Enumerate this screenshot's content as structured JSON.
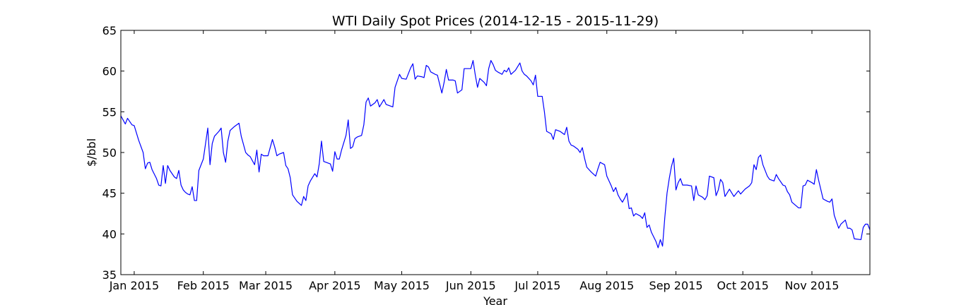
{
  "chart_data": {
    "type": "line",
    "title": "WTI Daily Spot Prices (2014-12-15 - 2015-11-29)",
    "xlabel": "Year",
    "ylabel": "$/bbl",
    "color": "#0000ff",
    "grid": false,
    "xlim": [
      "2014-12-26",
      "2015-11-27"
    ],
    "xticks": [
      {
        "value": "2015-01-01",
        "label": "Jan 2015"
      },
      {
        "value": "2015-02-01",
        "label": "Feb 2015"
      },
      {
        "value": "2015-03-01",
        "label": "Mar 2015"
      },
      {
        "value": "2015-04-01",
        "label": "Apr 2015"
      },
      {
        "value": "2015-05-01",
        "label": "May 2015"
      },
      {
        "value": "2015-06-01",
        "label": "Jun 2015"
      },
      {
        "value": "2015-07-01",
        "label": "Jul 2015"
      },
      {
        "value": "2015-08-01",
        "label": "Aug 2015"
      },
      {
        "value": "2015-09-01",
        "label": "Sep 2015"
      },
      {
        "value": "2015-10-01",
        "label": "Oct 2015"
      },
      {
        "value": "2015-11-01",
        "label": "Nov 2015"
      }
    ],
    "ylim": [
      35,
      65
    ],
    "yticks": [
      35,
      40,
      45,
      50,
      55,
      60,
      65
    ],
    "x": [
      "2014-12-26",
      "2014-12-28",
      "2014-12-29",
      "2014-12-31",
      "2015-01-01",
      "2015-01-03",
      "2015-01-05",
      "2015-01-06",
      "2015-01-07",
      "2015-01-08",
      "2015-01-09",
      "2015-01-11",
      "2015-01-12",
      "2015-01-13",
      "2015-01-14",
      "2015-01-15",
      "2015-01-16",
      "2015-01-17",
      "2015-01-19",
      "2015-01-20",
      "2015-01-21",
      "2015-01-22",
      "2015-01-23",
      "2015-01-24",
      "2015-01-25",
      "2015-01-26",
      "2015-01-27",
      "2015-01-28",
      "2015-01-29",
      "2015-01-30",
      "2015-02-01",
      "2015-02-03",
      "2015-02-04",
      "2015-02-05",
      "2015-02-06",
      "2015-02-08",
      "2015-02-09",
      "2015-02-10",
      "2015-02-11",
      "2015-02-12",
      "2015-02-13",
      "2015-02-15",
      "2015-02-17",
      "2015-02-18",
      "2015-02-20",
      "2015-02-21",
      "2015-02-22",
      "2015-02-24",
      "2015-02-25",
      "2015-02-26",
      "2015-02-27",
      "2015-02-28",
      "2015-03-02",
      "2015-03-04",
      "2015-03-05",
      "2015-03-06",
      "2015-03-07",
      "2015-03-09",
      "2015-03-10",
      "2015-03-11",
      "2015-03-12",
      "2015-03-13",
      "2015-03-15",
      "2015-03-17",
      "2015-03-18",
      "2015-03-19",
      "2015-03-20",
      "2015-03-21",
      "2015-03-23",
      "2015-03-24",
      "2015-03-25",
      "2015-03-26",
      "2015-03-27",
      "2015-03-28",
      "2015-03-30",
      "2015-03-31",
      "2015-04-01",
      "2015-04-02",
      "2015-04-03",
      "2015-04-04",
      "2015-04-06",
      "2015-04-07",
      "2015-04-08",
      "2015-04-09",
      "2015-04-10",
      "2015-04-11",
      "2015-04-13",
      "2015-04-14",
      "2015-04-15",
      "2015-04-16",
      "2015-04-17",
      "2015-04-19",
      "2015-04-20",
      "2015-04-21",
      "2015-04-23",
      "2015-04-24",
      "2015-04-27",
      "2015-04-28",
      "2015-04-30",
      "2015-05-01",
      "2015-05-03",
      "2015-05-05",
      "2015-05-06",
      "2015-05-07",
      "2015-05-08",
      "2015-05-10",
      "2015-05-11",
      "2015-05-12",
      "2015-05-13",
      "2015-05-14",
      "2015-05-16",
      "2015-05-17",
      "2015-05-19",
      "2015-05-20",
      "2015-05-21",
      "2015-05-22",
      "2015-05-24",
      "2015-05-25",
      "2015-05-26",
      "2015-05-28",
      "2015-05-29",
      "2015-05-31",
      "2015-06-01",
      "2015-06-02",
      "2015-06-03",
      "2015-06-04",
      "2015-06-05",
      "2015-06-07",
      "2015-06-08",
      "2015-06-09",
      "2015-06-10",
      "2015-06-11",
      "2015-06-12",
      "2015-06-13",
      "2015-06-15",
      "2015-06-16",
      "2015-06-17",
      "2015-06-18",
      "2015-06-19",
      "2015-06-21",
      "2015-06-23",
      "2015-06-24",
      "2015-06-25",
      "2015-06-26",
      "2015-06-28",
      "2015-06-29",
      "2015-06-30",
      "2015-07-01",
      "2015-07-03",
      "2015-07-04",
      "2015-07-05",
      "2015-07-07",
      "2015-07-08",
      "2015-07-09",
      "2015-07-11",
      "2015-07-13",
      "2015-07-14",
      "2015-07-15",
      "2015-07-16",
      "2015-07-17",
      "2015-07-19",
      "2015-07-20",
      "2015-07-21",
      "2015-07-22",
      "2015-07-23",
      "2015-07-24",
      "2015-07-25",
      "2015-07-27",
      "2015-07-28",
      "2015-07-29",
      "2015-07-31",
      "2015-08-01",
      "2015-08-02",
      "2015-08-03",
      "2015-08-04",
      "2015-08-05",
      "2015-08-06",
      "2015-08-07",
      "2015-08-08",
      "2015-08-09",
      "2015-08-10",
      "2015-08-11",
      "2015-08-12",
      "2015-08-13",
      "2015-08-14",
      "2015-08-16",
      "2015-08-17",
      "2015-08-18",
      "2015-08-19",
      "2015-08-20",
      "2015-08-21",
      "2015-08-23",
      "2015-08-24",
      "2015-08-25",
      "2015-08-26",
      "2015-08-27",
      "2015-08-28",
      "2015-08-29",
      "2015-08-30",
      "2015-08-31",
      "2015-09-01",
      "2015-09-02",
      "2015-09-03",
      "2015-09-04",
      "2015-09-06",
      "2015-09-08",
      "2015-09-09",
      "2015-09-10",
      "2015-09-11",
      "2015-09-13",
      "2015-09-14",
      "2015-09-15",
      "2015-09-16",
      "2015-09-18",
      "2015-09-19",
      "2015-09-20",
      "2015-09-21",
      "2015-09-22",
      "2015-09-23",
      "2015-09-25",
      "2015-09-27",
      "2015-09-29",
      "2015-09-30",
      "2015-10-02",
      "2015-10-04",
      "2015-10-05",
      "2015-10-06",
      "2015-10-07",
      "2015-10-08",
      "2015-10-09",
      "2015-10-10",
      "2015-10-12",
      "2015-10-13",
      "2015-10-15",
      "2015-10-16",
      "2015-10-17",
      "2015-10-19",
      "2015-10-20",
      "2015-10-21",
      "2015-10-22",
      "2015-10-23",
      "2015-10-26",
      "2015-10-27",
      "2015-10-28",
      "2015-10-29",
      "2015-10-30",
      "2015-11-01",
      "2015-11-02",
      "2015-11-03",
      "2015-11-04",
      "2015-11-06",
      "2015-11-08",
      "2015-11-09",
      "2015-11-10",
      "2015-11-11",
      "2015-11-13",
      "2015-11-14",
      "2015-11-16",
      "2015-11-17",
      "2015-11-18",
      "2015-11-19",
      "2015-11-20",
      "2015-11-23",
      "2015-11-24",
      "2015-11-25",
      "2015-11-26",
      "2015-11-27"
    ],
    "values": [
      54.5,
      53.5,
      54.2,
      53.4,
      53.3,
      51.5,
      50.0,
      48.0,
      48.7,
      48.8,
      47.9,
      46.8,
      46.0,
      45.9,
      48.4,
      46.2,
      48.4,
      47.8,
      47.0,
      46.8,
      47.8,
      46.0,
      45.4,
      45.1,
      44.9,
      44.8,
      45.8,
      44.1,
      44.1,
      47.8,
      49.2,
      53.0,
      48.5,
      51.1,
      52.0,
      52.6,
      53.0,
      50.0,
      48.8,
      51.4,
      52.7,
      53.2,
      53.6,
      52.0,
      50.0,
      49.7,
      49.5,
      48.5,
      50.3,
      47.6,
      49.8,
      49.6,
      49.6,
      51.6,
      50.7,
      49.6,
      49.8,
      50.0,
      48.4,
      48.0,
      46.9,
      44.8,
      44.0,
      43.5,
      44.6,
      44.1,
      45.9,
      46.5,
      47.4,
      47.0,
      48.6,
      51.4,
      48.9,
      48.8,
      48.6,
      47.7,
      50.1,
      49.2,
      49.2,
      50.3,
      52.1,
      54.0,
      50.5,
      50.7,
      51.7,
      51.9,
      52.1,
      53.4,
      56.2,
      56.7,
      55.7,
      56.1,
      56.5,
      55.6,
      56.5,
      55.9,
      55.6,
      58.0,
      59.6,
      59.1,
      59.0,
      60.4,
      60.9,
      59.0,
      59.4,
      59.3,
      59.2,
      60.7,
      60.5,
      59.9,
      59.6,
      59.5,
      57.3,
      58.6,
      60.2,
      58.9,
      58.9,
      58.8,
      57.3,
      57.7,
      60.3,
      60.3,
      60.3,
      61.3,
      59.5,
      58.0,
      59.1,
      58.6,
      58.2,
      60.3,
      61.3,
      60.8,
      60.1,
      59.9,
      59.6,
      60.1,
      59.9,
      60.4,
      59.6,
      60.1,
      61.0,
      60.0,
      59.6,
      59.4,
      58.8,
      58.3,
      59.5,
      56.9,
      56.9,
      55.0,
      52.6,
      52.3,
      51.6,
      52.8,
      52.6,
      52.2,
      53.1,
      51.4,
      50.9,
      50.8,
      50.4,
      50.0,
      50.6,
      49.3,
      48.2,
      47.9,
      47.6,
      47.1,
      48.0,
      48.8,
      48.5,
      47.1,
      46.5,
      45.9,
      45.2,
      45.7,
      44.8,
      44.3,
      43.9,
      44.4,
      45.0,
      43.1,
      43.2,
      42.2,
      42.5,
      42.2,
      41.9,
      42.6,
      40.8,
      41.1,
      40.2,
      39.1,
      38.3,
      39.3,
      38.5,
      42.0,
      45.0,
      46.8,
      48.3,
      49.3,
      45.4,
      46.3,
      46.8,
      46.0,
      46.0,
      45.9,
      44.1,
      45.9,
      44.8,
      44.5,
      44.2,
      44.7,
      47.1,
      46.9,
      44.7,
      45.4,
      46.7,
      46.3,
      44.6,
      45.5,
      44.6,
      45.3,
      44.9,
      45.5,
      45.9,
      46.3,
      48.5,
      47.9,
      49.4,
      49.7,
      48.5,
      47.1,
      46.7,
      46.5,
      47.3,
      46.8,
      46.0,
      45.9,
      45.2,
      44.8,
      43.9,
      43.2,
      43.2,
      45.9,
      46.0,
      46.6,
      46.3,
      46.1,
      47.9,
      46.6,
      44.3,
      44.0,
      43.9,
      44.3,
      42.3,
      40.7,
      41.2,
      41.7,
      40.7,
      40.7,
      40.5,
      39.4,
      39.3,
      40.8,
      41.2,
      41.2,
      40.5
    ]
  }
}
